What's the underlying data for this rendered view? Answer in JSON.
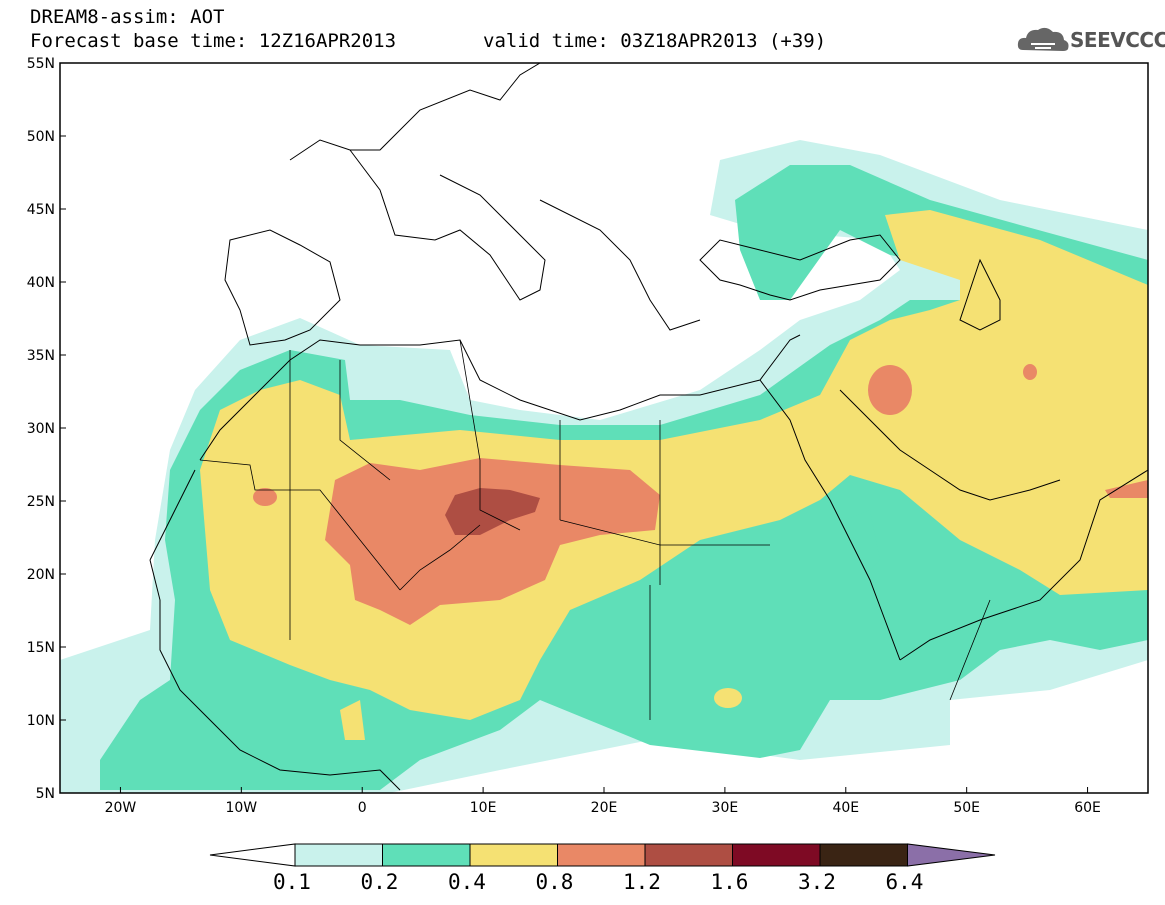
{
  "header": {
    "title": "DREAM8-assim: AOT",
    "base_time": "Forecast base time: 12Z16APR2013",
    "valid_time": "valid time: 03Z18APR2013 (+39)"
  },
  "logo": {
    "text": "SEEVCCC",
    "icon": "cloud-icon"
  },
  "map": {
    "lat_labels": [
      "55N",
      "50N",
      "45N",
      "40N",
      "35N",
      "30N",
      "25N",
      "20N",
      "15N",
      "10N",
      "5N"
    ],
    "lon_labels": [
      "20W",
      "10W",
      "0",
      "10E",
      "20E",
      "30E",
      "40E",
      "50E",
      "60E"
    ],
    "lat_range": [
      5,
      55
    ],
    "lon_range": [
      -25,
      65
    ]
  },
  "colorbar": {
    "labels": [
      "0.1",
      "0.2",
      "0.4",
      "0.8",
      "1.2",
      "1.6",
      "3.2",
      "6.4"
    ],
    "colors": [
      "#c9f2ec",
      "#5fdfb8",
      "#f5e173",
      "#e98866",
      "#ae4e43",
      "#7e0a24",
      "#3a2414",
      "#8b6fa8"
    ],
    "under_color": "#ffffff"
  },
  "levels_colors": {
    "l1": "#c9f2ec",
    "l2": "#5fdfb8",
    "l3": "#f5e173",
    "l4": "#e98866",
    "l5": "#ae4e43"
  }
}
